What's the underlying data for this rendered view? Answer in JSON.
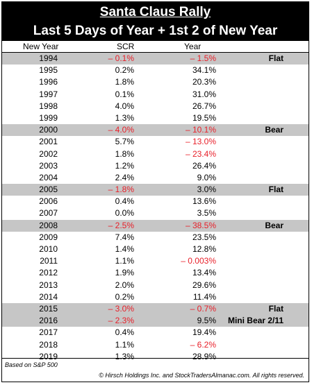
{
  "title": "Santa Claus Rally",
  "subtitle": "Last 5 Days of Year + 1st 2 of  New Year",
  "columns": {
    "new_year": "New Year",
    "scr": "SCR",
    "year": "Year"
  },
  "rows": [
    {
      "year": "1994",
      "scr": "– 0.1%",
      "full": "– 1.5%",
      "note": "Flat",
      "shade": true,
      "scr_neg": true,
      "full_neg": true
    },
    {
      "year": "1995",
      "scr": "0.2%",
      "full": "34.1%",
      "note": "",
      "shade": false,
      "scr_neg": false,
      "full_neg": false
    },
    {
      "year": "1996",
      "scr": "1.8%",
      "full": "20.3%",
      "note": "",
      "shade": false,
      "scr_neg": false,
      "full_neg": false
    },
    {
      "year": "1997",
      "scr": "0.1%",
      "full": "31.0%",
      "note": "",
      "shade": false,
      "scr_neg": false,
      "full_neg": false
    },
    {
      "year": "1998",
      "scr": "4.0%",
      "full": "26.7%",
      "note": "",
      "shade": false,
      "scr_neg": false,
      "full_neg": false
    },
    {
      "year": "1999",
      "scr": "1.3%",
      "full": "19.5%",
      "note": "",
      "shade": false,
      "scr_neg": false,
      "full_neg": false
    },
    {
      "year": "2000",
      "scr": "– 4.0%",
      "full": "– 10.1%",
      "note": "Bear",
      "shade": true,
      "scr_neg": true,
      "full_neg": true
    },
    {
      "year": "2001",
      "scr": "5.7%",
      "full": "– 13.0%",
      "note": "",
      "shade": false,
      "scr_neg": false,
      "full_neg": true
    },
    {
      "year": "2002",
      "scr": "1.8%",
      "full": "– 23.4%",
      "note": "",
      "shade": false,
      "scr_neg": false,
      "full_neg": true
    },
    {
      "year": "2003",
      "scr": "1.2%",
      "full": "26.4%",
      "note": "",
      "shade": false,
      "scr_neg": false,
      "full_neg": false
    },
    {
      "year": "2004",
      "scr": "2.4%",
      "full": "9.0%",
      "note": "",
      "shade": false,
      "scr_neg": false,
      "full_neg": false
    },
    {
      "year": "2005",
      "scr": "– 1.8%",
      "full": "3.0%",
      "note": "Flat",
      "shade": true,
      "scr_neg": true,
      "full_neg": false
    },
    {
      "year": "2006",
      "scr": "0.4%",
      "full": "13.6%",
      "note": "",
      "shade": false,
      "scr_neg": false,
      "full_neg": false
    },
    {
      "year": "2007",
      "scr": "0.0%",
      "full": "3.5%",
      "note": "",
      "shade": false,
      "scr_neg": false,
      "full_neg": false
    },
    {
      "year": "2008",
      "scr": "– 2.5%",
      "full": "– 38.5%",
      "note": "Bear",
      "shade": true,
      "scr_neg": true,
      "full_neg": true
    },
    {
      "year": "2009",
      "scr": "7.4%",
      "full": "23.5%",
      "note": "",
      "shade": false,
      "scr_neg": false,
      "full_neg": false
    },
    {
      "year": "2010",
      "scr": "1.4%",
      "full": "12.8%",
      "note": "",
      "shade": false,
      "scr_neg": false,
      "full_neg": false
    },
    {
      "year": "2011",
      "scr": "1.1%",
      "full": "– 0.003%",
      "note": "",
      "shade": false,
      "scr_neg": false,
      "full_neg": true
    },
    {
      "year": "2012",
      "scr": "1.9%",
      "full": "13.4%",
      "note": "",
      "shade": false,
      "scr_neg": false,
      "full_neg": false
    },
    {
      "year": "2013",
      "scr": "2.0%",
      "full": "29.6%",
      "note": "",
      "shade": false,
      "scr_neg": false,
      "full_neg": false
    },
    {
      "year": "2014",
      "scr": "0.2%",
      "full": "11.4%",
      "note": "",
      "shade": false,
      "scr_neg": false,
      "full_neg": false
    },
    {
      "year": "2015",
      "scr": "– 3.0%",
      "full": "– 0.7%",
      "note": "Flat",
      "shade": true,
      "scr_neg": true,
      "full_neg": true
    },
    {
      "year": "2016",
      "scr": "– 2.3%",
      "full": "9.5%",
      "note": "Mini Bear 2/11",
      "shade": true,
      "scr_neg": true,
      "full_neg": false
    },
    {
      "year": "2017",
      "scr": "0.4%",
      "full": "19.4%",
      "note": "",
      "shade": false,
      "scr_neg": false,
      "full_neg": false
    },
    {
      "year": "2018",
      "scr": "1.1%",
      "full": "– 6.2%",
      "note": "",
      "shade": false,
      "scr_neg": false,
      "full_neg": true
    },
    {
      "year": "2019",
      "scr": "1.3%",
      "full": "28.9%",
      "note": "",
      "shade": false,
      "scr_neg": false,
      "full_neg": false
    }
  ],
  "footer": {
    "basis": "Based on S&P 500",
    "copyright": "© Hirsch Holdings Inc. and StockTradersAlmanac.com. All rights reserved."
  },
  "colors": {
    "negative": "#e8202a",
    "shade": "#c6c6c6",
    "header_bg": "#000000"
  }
}
